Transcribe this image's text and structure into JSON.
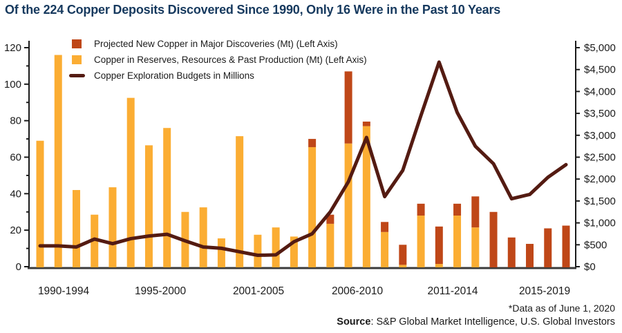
{
  "title": "Of the 224 Copper Deposits Discovered Since 1990, Only 16 Were in the Past 10 Years",
  "legend": [
    {
      "label": "Projected New Copper in Major Discoveries (Mt) (Left Axis)",
      "color": "#bf4718",
      "marker": "square"
    },
    {
      "label": "Copper in Reserves, Resources & Past Production (Mt) (Left Axis)",
      "color": "#fbad33",
      "marker": "square"
    },
    {
      "label": "Copper Exploration Budgets in Millions",
      "color": "#541b12",
      "marker": "line"
    }
  ],
  "footnote": "*Data as of June 1, 2020",
  "source": {
    "label": "Source",
    "text": ": S&P Global Market Intelligence, U.S. Global Investors"
  },
  "colors": {
    "projected_bar": "#bf4718",
    "reserves_bar": "#fbad33",
    "budget_line": "#541b12",
    "title_text": "#16395e",
    "axis": "#1a1a1a",
    "baseline": "#3a3a3a",
    "tick_text": "#1a1a1a"
  },
  "chart_data": {
    "type": "bar",
    "subtype": "stacked bars with overlaid line (dual axis)",
    "title": "Of the 224 Copper Deposits Discovered Since 1990, Only 16 Were in the Past 10 Years",
    "x": [
      1990,
      1991,
      1992,
      1993,
      1994,
      1995,
      1996,
      1997,
      1998,
      1999,
      2000,
      2001,
      2002,
      2003,
      2004,
      2005,
      2006,
      2007,
      2008,
      2009,
      2010,
      2011,
      2012,
      2013,
      2014,
      2015,
      2016,
      2017,
      2018,
      2019
    ],
    "x_group_labels": [
      "1990-1994",
      "1995-2000",
      "2001-2005",
      "2006-2010",
      "2011-2014",
      "2015-2019"
    ],
    "series": [
      {
        "name": "Projected New Copper in Major Discoveries (Mt)",
        "axis": "left",
        "render": "bar-top",
        "values": [
          0,
          0,
          0,
          0,
          0,
          0,
          0,
          0,
          0,
          0,
          0,
          0,
          0,
          0,
          0,
          4.5,
          5,
          39.5,
          2.5,
          5.5,
          11,
          6.5,
          20.5,
          6.5,
          17,
          30,
          16,
          12.5,
          21,
          22.5
        ]
      },
      {
        "name": "Copper in Reserves, Resources & Past Production (Mt)",
        "axis": "left",
        "render": "bar-bottom",
        "values": [
          69,
          116,
          42,
          28.5,
          43.5,
          92.5,
          66.5,
          76,
          30,
          32.5,
          15.5,
          71.5,
          17.5,
          21.5,
          16.5,
          65.5,
          23.5,
          67.5,
          77,
          19,
          1,
          28,
          1.5,
          28,
          21.5,
          0,
          0,
          0,
          0,
          0
        ]
      },
      {
        "name": "Copper Exploration Budgets in Millions",
        "axis": "right",
        "render": "line",
        "values": [
          475,
          475,
          450,
          630,
          525,
          640,
          700,
          740,
          590,
          450,
          420,
          340,
          260,
          270,
          570,
          750,
          1250,
          1940,
          2950,
          1600,
          2200,
          3450,
          4670,
          3520,
          2750,
          2350,
          1550,
          1650,
          2040,
          2330
        ]
      }
    ],
    "left_axis": {
      "range": [
        0,
        120
      ],
      "tick_values": [
        0,
        20,
        40,
        60,
        80,
        100,
        120
      ],
      "tick_labels": [
        "0",
        "20",
        "40",
        "60",
        "80",
        "100",
        "120"
      ],
      "minor_step": 10
    },
    "right_axis": {
      "range": [
        0,
        5000
      ],
      "tick_values": [
        0,
        500,
        1000,
        1500,
        2000,
        2500,
        3000,
        3500,
        4000,
        4500,
        5000
      ],
      "tick_labels": [
        "$0",
        "$500",
        "$1,000",
        "$1,500",
        "$2,000",
        "$2,500",
        "$3,000",
        "$3,500",
        "$4,000",
        "$4,500",
        "$5,000"
      ]
    },
    "grid": false,
    "legend_position": "top-left"
  }
}
